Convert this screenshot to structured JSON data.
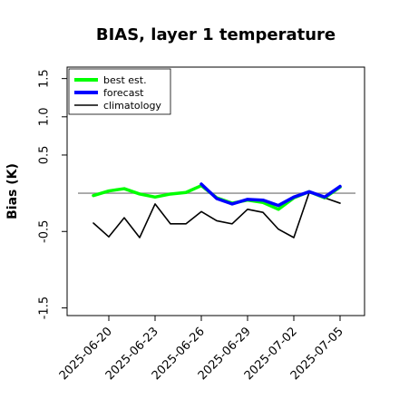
{
  "chart_data": {
    "type": "line",
    "title": "BIAS, layer 1 temperature",
    "ylabel": "Bias (K)",
    "xlabel": "",
    "ylim": [
      -1.6,
      1.65
    ],
    "yticks": [
      -1.5,
      -0.5,
      0.5,
      1.0,
      1.5
    ],
    "yticks_labels": [
      "-1.5",
      "-0.5",
      "0.5",
      "1.0",
      "1.5"
    ],
    "xticks": [
      "2025-06-20",
      "2025-06-23",
      "2025-06-26",
      "2025-06-29",
      "2025-07-02",
      "2025-07-05"
    ],
    "xtick_highlight": "2025-06-26",
    "xtick_highlight_color": "#228b22",
    "x": [
      "2025-06-19",
      "2025-06-20",
      "2025-06-21",
      "2025-06-22",
      "2025-06-23",
      "2025-06-24",
      "2025-06-25",
      "2025-06-26",
      "2025-06-27",
      "2025-06-28",
      "2025-06-29",
      "2025-06-30",
      "2025-07-01",
      "2025-07-02",
      "2025-07-03",
      "2025-07-04",
      "2025-07-05"
    ],
    "reference_line": 0,
    "series": [
      {
        "name": "best est.",
        "color": "#00ff00",
        "values": [
          -0.03,
          0.03,
          0.06,
          -0.01,
          -0.05,
          -0.01,
          0.01,
          0.1,
          -0.06,
          -0.13,
          -0.09,
          -0.12,
          -0.21,
          -0.06,
          0.02,
          -0.06,
          0.08
        ]
      },
      {
        "name": "forecast",
        "color": "#0000ff",
        "values": [
          null,
          null,
          null,
          null,
          null,
          null,
          null,
          0.12,
          -0.07,
          -0.14,
          -0.08,
          -0.09,
          -0.16,
          -0.05,
          0.02,
          -0.05,
          0.09
        ]
      },
      {
        "name": "climatology",
        "color": "#000000",
        "values": [
          -0.39,
          -0.57,
          -0.32,
          -0.58,
          -0.14,
          -0.4,
          -0.4,
          -0.24,
          -0.36,
          -0.4,
          -0.21,
          -0.25,
          -0.47,
          -0.58,
          0.01,
          -0.06,
          -0.13
        ]
      }
    ],
    "legend_position": "top-left",
    "grid": false
  }
}
